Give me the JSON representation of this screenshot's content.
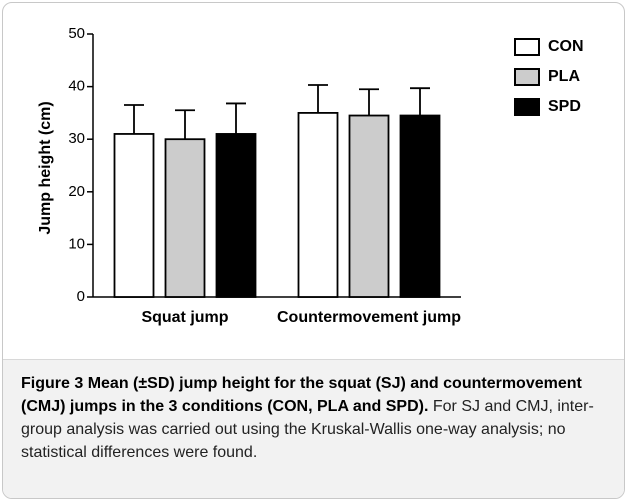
{
  "chart_data": {
    "type": "bar",
    "ylabel": "Jump height (cm)",
    "categories": [
      "Squat jump",
      "Countermovement jump"
    ],
    "series": [
      {
        "name": "CON",
        "color": "#ffffff",
        "values": [
          31,
          35
        ],
        "errors": [
          5.5,
          5.3
        ]
      },
      {
        "name": "PLA",
        "color": "#cccccc",
        "values": [
          30,
          34.5
        ],
        "errors": [
          5.5,
          5
        ]
      },
      {
        "name": "SPD",
        "color": "#000000",
        "values": [
          31,
          34.5
        ],
        "errors": [
          5.8,
          5.2
        ]
      }
    ],
    "ylim": [
      0,
      50
    ],
    "yticks": [
      0,
      10,
      20,
      30,
      40,
      50
    ],
    "legend": "upper right"
  },
  "caption": {
    "label": "Figure 3",
    "title": "Mean (±SD) jump height for the squat (SJ) and countermovement (CMJ) jumps in the 3 conditions (CON, PLA and SPD).",
    "text": "For SJ and CMJ, inter-group analysis was carried out using the Kruskal-Wallis one-way analysis; no statistical differences were found."
  }
}
